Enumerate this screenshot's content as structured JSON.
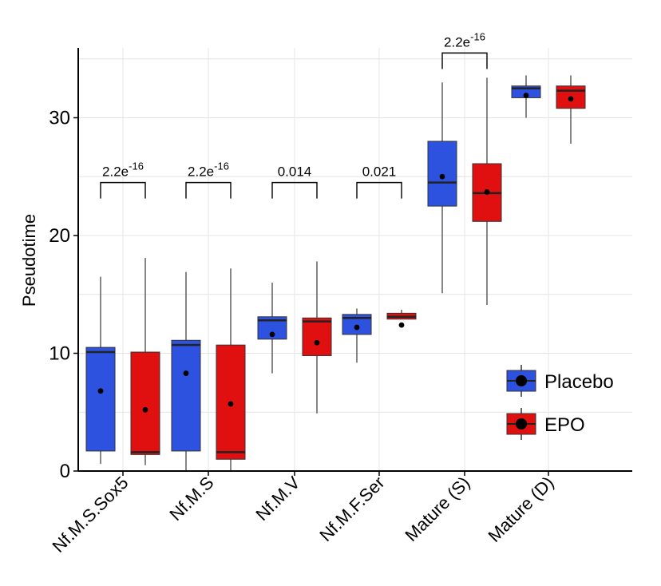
{
  "chart_data": {
    "type": "boxplot",
    "title": "",
    "xlabel": "",
    "ylabel": "Pseudotime",
    "ylim": [
      0,
      36
    ],
    "yticks": [
      0,
      10,
      20,
      30
    ],
    "grid": true,
    "legend_position": "bottom-right",
    "categories": [
      "Nf.M.S.Sox5",
      "Nf.M.S",
      "Nf.M.V",
      "Nf.M.F.Ser",
      "Mature (S)",
      "Mature (D)"
    ],
    "series": [
      {
        "name": "Placebo",
        "color": "#2d52e0",
        "boxes": [
          {
            "min": 0.6,
            "q1": 1.7,
            "median": 10.1,
            "q3": 10.5,
            "max": 16.5,
            "mean": 6.8
          },
          {
            "min": 0.0,
            "q1": 1.7,
            "median": 10.7,
            "q3": 11.1,
            "max": 16.9,
            "mean": 8.3
          },
          {
            "min": 8.3,
            "q1": 11.2,
            "median": 12.8,
            "q3": 13.1,
            "max": 16.0,
            "mean": 11.6
          },
          {
            "min": 9.2,
            "q1": 11.6,
            "median": 13.0,
            "q3": 13.3,
            "max": 13.8,
            "mean": 12.2
          },
          {
            "min": 15.1,
            "q1": 22.5,
            "median": 24.5,
            "q3": 28.0,
            "max": 33.0,
            "mean": 25.0
          },
          {
            "min": 30.0,
            "q1": 31.7,
            "median": 32.5,
            "q3": 32.7,
            "max": 33.6,
            "mean": 31.9
          }
        ]
      },
      {
        "name": "EPO",
        "color": "#e01010",
        "boxes": [
          {
            "min": 0.5,
            "q1": 1.4,
            "median": 1.6,
            "q3": 10.1,
            "max": 18.1,
            "mean": 5.2
          },
          {
            "min": 0.0,
            "q1": 1.0,
            "median": 1.6,
            "q3": 10.7,
            "max": 17.2,
            "mean": 5.7
          },
          {
            "min": 4.9,
            "q1": 9.8,
            "median": 12.7,
            "q3": 13.0,
            "max": 17.8,
            "mean": 10.9
          },
          {
            "min": 12.9,
            "q1": 12.9,
            "median": 13.1,
            "q3": 13.4,
            "max": 13.7,
            "mean": 12.4
          },
          {
            "min": 14.1,
            "q1": 21.2,
            "median": 23.6,
            "q3": 26.1,
            "max": 33.4,
            "mean": 23.7
          },
          {
            "min": 27.8,
            "q1": 30.8,
            "median": 32.3,
            "q3": 32.7,
            "max": 33.6,
            "mean": 31.6
          }
        ]
      }
    ],
    "annotations": [
      {
        "category_index": 0,
        "base": "2.2e",
        "exponent": "-16",
        "level": 24.5
      },
      {
        "category_index": 1,
        "base": "2.2e",
        "exponent": "-16",
        "level": 24.5
      },
      {
        "category_index": 2,
        "base": "0.014",
        "exponent": "",
        "level": 24.5
      },
      {
        "category_index": 3,
        "base": "0.021",
        "exponent": "",
        "level": 24.5
      },
      {
        "category_index": 4,
        "base": "2.2e",
        "exponent": "-16",
        "level": 35.5
      }
    ]
  }
}
